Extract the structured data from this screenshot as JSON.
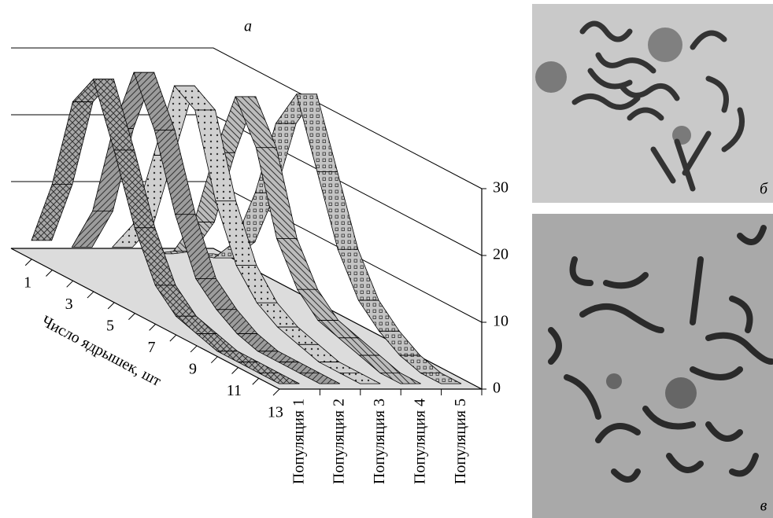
{
  "chart_data": {
    "type": "ribbon3d",
    "title": "а",
    "x_label": "Число ядрышек, шт",
    "categories": [
      1,
      null,
      3,
      null,
      5,
      null,
      7,
      null,
      9,
      null,
      11,
      null,
      13
    ],
    "series": [
      {
        "name": "Популяция 1",
        "color": "#a8a8a8",
        "values": [
          2,
          12,
          26,
          31,
          22,
          12,
          5,
          2,
          1,
          0,
          0,
          0,
          0
        ]
      },
      {
        "name": "Популяция 2",
        "color": "#9c9c9c",
        "values": [
          1,
          8,
          22,
          32,
          25,
          14,
          6,
          3,
          1,
          0,
          0,
          0,
          0
        ]
      },
      {
        "name": "Популяция 3",
        "color": "#d0d0d0",
        "values": [
          1,
          6,
          18,
          30,
          28,
          16,
          8,
          4,
          2,
          1,
          0,
          0,
          0
        ]
      },
      {
        "name": "Популяция 4",
        "color": "#bcbcbc",
        "values": [
          0,
          2,
          8,
          20,
          30,
          24,
          12,
          6,
          3,
          2,
          1,
          0,
          0
        ]
      },
      {
        "name": "Популяция 5",
        "color": "#c4c4c4",
        "values": [
          0,
          1,
          5,
          14,
          26,
          32,
          22,
          12,
          6,
          3,
          1,
          0,
          0
        ]
      }
    ],
    "ylim": [
      0,
      30
    ],
    "yticks": [
      0,
      10,
      20,
      30
    ],
    "grid": true
  },
  "figure": {
    "panels": [
      {
        "label": "б"
      },
      {
        "label": "в"
      }
    ]
  }
}
